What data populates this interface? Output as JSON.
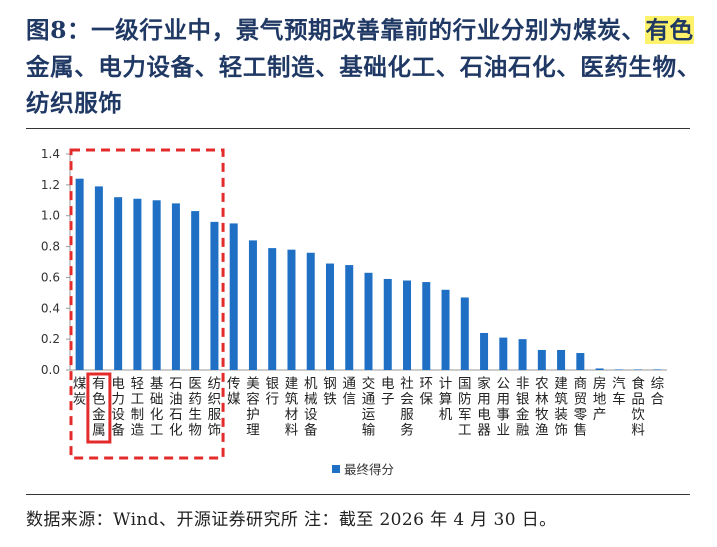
{
  "title": {
    "prefix": "图8：一级行业中，景气预期改善靠前的行业分别为煤炭、",
    "highlight": "有色",
    "suffix": "金属、电力设备、轻工制造、基础化工、石油石化、医药生物、纺织服饰"
  },
  "source": "数据来源：Wind、开源证券研究所 注：截至 2026 年 4 月 30 日。",
  "colors": {
    "bar": "#1f6fc5",
    "highlight_box": "#e32b2b",
    "title": "#1f3864"
  },
  "chart_data": {
    "type": "bar",
    "categories": [
      "煤炭",
      "有色金属",
      "电力设备",
      "轻工制造",
      "基础化工",
      "石油石化",
      "医药生物",
      "纺织服饰",
      "传媒",
      "美容护理",
      "银行",
      "建筑材料",
      "机械设备",
      "钢铁",
      "通信",
      "交通运输",
      "电子",
      "社会服务",
      "环保",
      "计算机",
      "国防军工",
      "家用电器",
      "公用事业",
      "非银金融",
      "农林牧渔",
      "建筑装饰",
      "商贸零售",
      "房地产",
      "汽车",
      "食品饮料",
      "综合"
    ],
    "series": [
      {
        "name": "最终得分",
        "values": [
          1.24,
          1.19,
          1.12,
          1.11,
          1.1,
          1.08,
          1.03,
          0.96,
          0.95,
          0.84,
          0.79,
          0.78,
          0.76,
          0.69,
          0.68,
          0.63,
          0.59,
          0.58,
          0.57,
          0.52,
          0.47,
          0.24,
          0.21,
          0.2,
          0.13,
          0.13,
          0.11,
          0.01,
          0.0,
          0.0,
          0.0
        ]
      }
    ],
    "ylim": [
      0,
      1.4
    ],
    "yticks": [
      "0.0",
      "0.2",
      "0.4",
      "0.6",
      "0.8",
      "1.0",
      "1.2",
      "1.4"
    ],
    "grid": false,
    "legend_position": "bottom",
    "highlight_group": [
      "煤炭",
      "有色金属",
      "电力设备",
      "轻工制造",
      "基础化工",
      "石油石化",
      "医药生物",
      "纺织服饰"
    ],
    "highlight_single": "有色金属"
  }
}
